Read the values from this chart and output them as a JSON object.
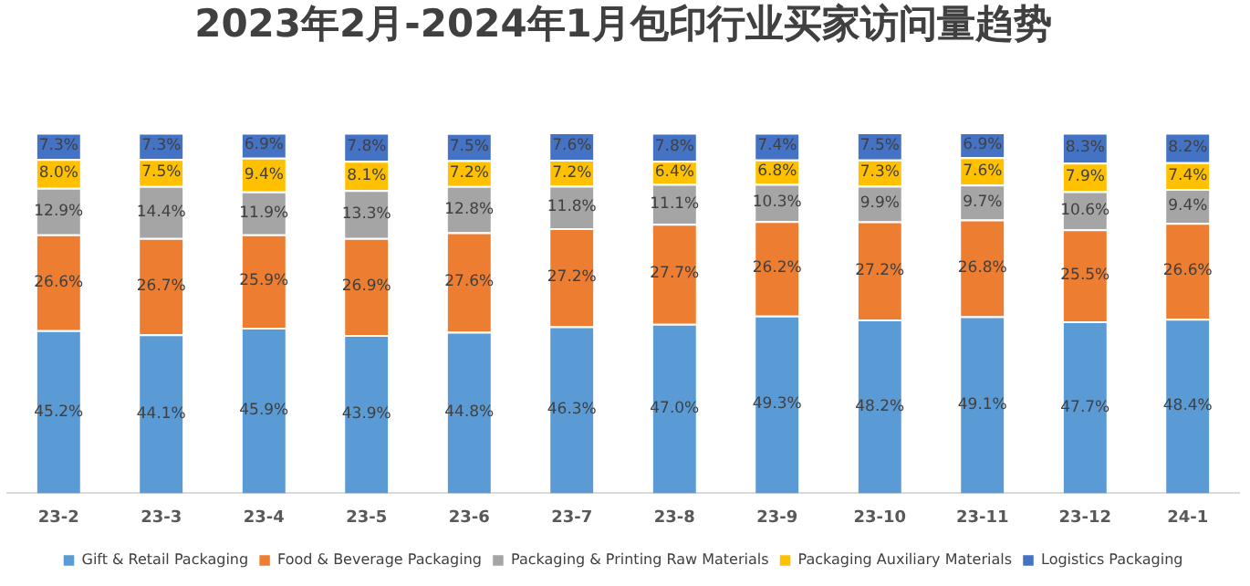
{
  "chart_data": {
    "type": "bar",
    "title": "2023年2月-2024年1月包印行业买家访问量趋势",
    "stacked": true,
    "legend": "bottom",
    "grid": false,
    "tick_labels": "x",
    "categories": [
      "23-2",
      "23-3",
      "23-4",
      "23-5",
      "23-6",
      "23-7",
      "23-8",
      "23-9",
      "23-10",
      "23-11",
      "23-12",
      "24-1"
    ],
    "series": [
      {
        "name": "Gift & Retail Packaging",
        "color": "#5b9bd5",
        "values": [
          45.2,
          44.1,
          45.9,
          43.9,
          44.8,
          46.3,
          47.0,
          49.3,
          48.2,
          49.1,
          47.7,
          48.4
        ],
        "value_labels": [
          "45.2%",
          "44.1%",
          "45.9%",
          "43.9%",
          "44.8%",
          "46.3%",
          "47.0%",
          "49.3%",
          "48.2%",
          "49.1%",
          "47.7%",
          "48.4%"
        ]
      },
      {
        "name": "Food & Beverage Packaging",
        "color": "#ed7d31",
        "values": [
          26.6,
          26.7,
          25.9,
          26.9,
          27.6,
          27.2,
          27.7,
          26.2,
          27.2,
          26.8,
          25.5,
          26.6
        ],
        "value_labels": [
          "26.6%",
          "26.7%",
          "25.9%",
          "26.9%",
          "27.6%",
          "27.2%",
          "27.7%",
          "26.2%",
          "27.2%",
          "26.8%",
          "25.5%",
          "26.6%"
        ]
      },
      {
        "name": "Packaging & Printing Raw Materials",
        "color": "#a5a5a5",
        "values": [
          12.9,
          14.4,
          11.9,
          13.3,
          12.8,
          11.8,
          11.1,
          10.3,
          9.9,
          9.7,
          10.6,
          9.4
        ],
        "value_labels": [
          "12.9%",
          "14.4%",
          "11.9%",
          "13.3%",
          "12.8%",
          "11.8%",
          "11.1%",
          "10.3%",
          "9.9%",
          "9.7%",
          "10.6%",
          "9.4%"
        ]
      },
      {
        "name": "Packaging Auxiliary Materials",
        "color": "#ffc000",
        "values": [
          8.0,
          7.5,
          9.4,
          8.1,
          7.2,
          7.2,
          6.4,
          6.8,
          7.3,
          7.6,
          7.9,
          7.4
        ],
        "value_labels": [
          "8.0%",
          "7.5%",
          "9.4%",
          "8.1%",
          "7.2%",
          "7.2%",
          "6.4%",
          "6.8%",
          "7.3%",
          "7.6%",
          "7.9%",
          "7.4%"
        ]
      },
      {
        "name": "Logistics Packaging",
        "color": "#4472c4",
        "values": [
          7.3,
          7.3,
          6.9,
          7.8,
          7.5,
          7.6,
          7.8,
          7.4,
          7.5,
          6.9,
          8.3,
          8.2
        ],
        "value_labels": [
          "7.3%",
          "7.3%",
          "6.9%",
          "7.8%",
          "7.5%",
          "7.6%",
          "7.8%",
          "7.4%",
          "7.5%",
          "6.9%",
          "8.3%",
          "8.2%"
        ]
      }
    ]
  }
}
